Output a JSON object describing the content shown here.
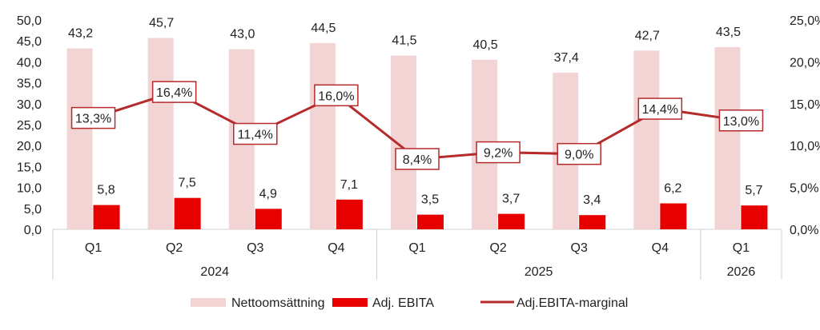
{
  "chart_data": {
    "type": "bar+line",
    "categories": [
      "Q1",
      "Q2",
      "Q3",
      "Q4",
      "Q1",
      "Q2",
      "Q3",
      "Q4",
      "Q1"
    ],
    "groups": [
      {
        "label": "2024",
        "span": 4
      },
      {
        "label": "2025",
        "span": 4
      },
      {
        "label": "2026",
        "span": 1
      }
    ],
    "series": [
      {
        "name": "Nettoomsättning",
        "type": "bar",
        "axis": "left",
        "color": "#f2d4d4",
        "values": [
          43.2,
          45.7,
          43.0,
          44.5,
          41.5,
          40.5,
          37.4,
          42.7,
          43.5
        ],
        "labels": [
          "43,2",
          "45,7",
          "43,0",
          "44,5",
          "41,5",
          "40,5",
          "37,4",
          "42,7",
          "43,5"
        ]
      },
      {
        "name": "Adj. EBITA",
        "type": "bar",
        "axis": "left",
        "color": "#e60000",
        "values": [
          5.8,
          7.5,
          4.9,
          7.1,
          3.5,
          3.7,
          3.4,
          6.2,
          5.7
        ],
        "labels": [
          "5,8",
          "7,5",
          "4,9",
          "7,1",
          "3,5",
          "3,7",
          "3,4",
          "6,2",
          "5,7"
        ]
      },
      {
        "name": "Adj.EBITA-marginal",
        "type": "line",
        "axis": "right",
        "color": "#b52a2a",
        "values": [
          13.3,
          16.4,
          11.4,
          16.0,
          8.4,
          9.2,
          9.0,
          14.4,
          13.0
        ],
        "labels": [
          "13,3%",
          "16,4%",
          "11,4%",
          "16,0%",
          "8,4%",
          "9,2%",
          "9,0%",
          "14,4%",
          "13,0%"
        ]
      }
    ],
    "left_axis": {
      "range": [
        0,
        50
      ],
      "ticks": [
        "0,0",
        "5,0",
        "10,0",
        "15,0",
        "20,0",
        "25,0",
        "30,0",
        "35,0",
        "40,0",
        "45,0",
        "50,0"
      ]
    },
    "right_axis": {
      "range": [
        0,
        25
      ],
      "ticks": [
        "0,0%",
        "5,0%",
        "10,0%",
        "15,0%",
        "20,0%",
        "25,0%"
      ]
    },
    "grid": false,
    "legend": "bottom"
  }
}
